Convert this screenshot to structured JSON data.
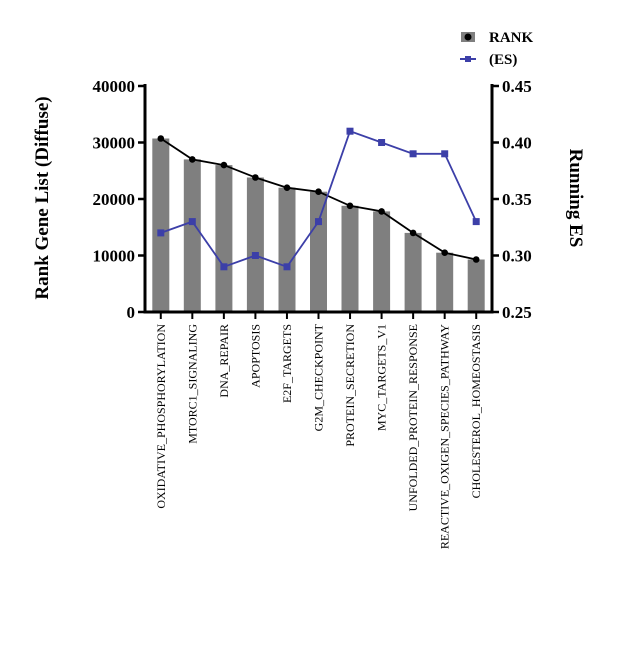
{
  "chart_data": {
    "type": "bar",
    "categories": [
      "OXIDATIVE_PHOSPHORYLATION",
      "MTORC1_SIGNALING",
      "DNA_REPAIR",
      "APOPTOSIS",
      "E2F_TARGETS",
      "G2M_CHECKPOINT",
      "PROTEIN_SECRETION",
      "MYC_TARGETS_V1",
      "UNFOLDED_PROTEIN_RESPONSE",
      "REACTIVE_OXIGEN_SPECIES_PATHWAY",
      "CHOLESTEROL_HOMEOSTASIS"
    ],
    "series": [
      {
        "name": "RANK",
        "kind": "bar+line",
        "axis": "left",
        "values": [
          30700,
          27000,
          26000,
          23800,
          22000,
          21300,
          18800,
          17800,
          14000,
          10500,
          9300
        ],
        "color": "#7f7f7f",
        "line_color": "#000000"
      },
      {
        "name": "(ES)",
        "kind": "line",
        "axis": "right",
        "values": [
          0.32,
          0.33,
          0.29,
          0.3,
          0.29,
          0.33,
          0.41,
          0.4,
          0.39,
          0.39,
          0.33
        ],
        "color": "#3c3fa8"
      }
    ],
    "ylabel": "Rank Gene List (Diffuse)",
    "ylim": [
      0,
      40000
    ],
    "yticks": [
      "0",
      "10000",
      "20000",
      "30000",
      "40000"
    ],
    "y2label": "Running ES",
    "y2lim": [
      0.25,
      0.45
    ],
    "y2ticks": [
      "0.25",
      "0.30",
      "0.35",
      "0.40",
      "0.45"
    ],
    "grid": false,
    "legend": "top-right"
  }
}
